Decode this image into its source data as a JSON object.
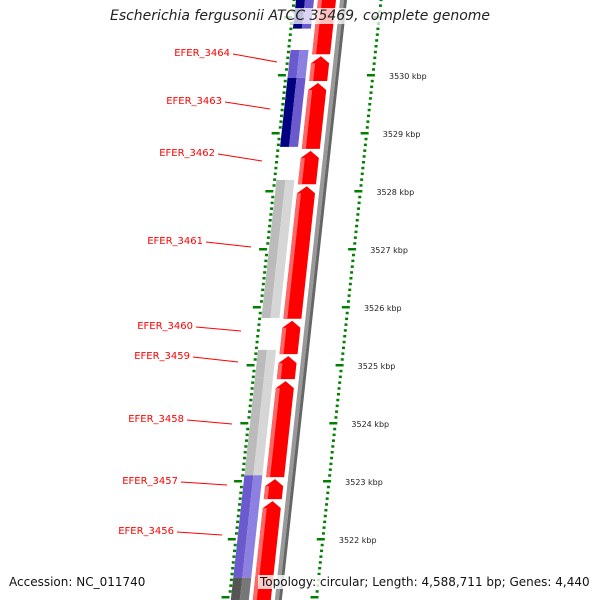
{
  "title": "Escherichia fergusonii ATCC 35469, complete genome",
  "accession": "Accession: NC_011740",
  "topology": "Topology: circular; Length: 4,588,711 bp; Genes: 4,440",
  "colors": {
    "forward": "#ff0000",
    "reverse_dark": "#000080",
    "reverse_light": "#6a5acd",
    "other": "#bbbbbb",
    "backbone": "#888888",
    "ticks": "#008000",
    "label": "#ff0000"
  },
  "ruler": {
    "unit": "kbp",
    "labels": [
      "3530 kbp",
      "3529 kbp",
      "3528 kbp",
      "3527 kbp",
      "3526 kbp",
      "3525 kbp",
      "3524 kbp",
      "3523 kbp",
      "3522 kbp"
    ],
    "values": [
      3530,
      3529,
      3528,
      3527,
      3526,
      3525,
      3524,
      3523,
      3522
    ]
  },
  "gene_labels": [
    "EFER_3464",
    "EFER_3463",
    "EFER_3462",
    "EFER_3461",
    "EFER_3460",
    "EFER_3459",
    "EFER_3458",
    "EFER_3457",
    "EFER_3456"
  ],
  "outer_genes": [
    {
      "start_kbp": 3530.8,
      "end_kbp": 3531.5,
      "type": "reverse_dark"
    },
    {
      "start_kbp": 3529.95,
      "end_kbp": 3530.43,
      "type": "reverse_light"
    },
    {
      "start_kbp": 3528.76,
      "end_kbp": 3529.95,
      "type": "reverse_dark"
    },
    {
      "start_kbp": 3525.81,
      "end_kbp": 3528.19,
      "type": "other"
    },
    {
      "start_kbp": 3524.78,
      "end_kbp": 3525.26,
      "type": "other"
    },
    {
      "start_kbp": 3523.1,
      "end_kbp": 3524.78,
      "type": "other"
    },
    {
      "start_kbp": 3521.33,
      "end_kbp": 3523.1,
      "type": "reverse_light"
    },
    {
      "start_kbp": 3520.9,
      "end_kbp": 3521.33,
      "type": "dark_other"
    }
  ],
  "forward_genes": [
    {
      "start_kbp": 3530.34,
      "end_kbp": 3531.5
    },
    {
      "start_kbp": 3529.88,
      "end_kbp": 3530.34
    },
    {
      "start_kbp": 3528.71,
      "end_kbp": 3529.88
    },
    {
      "start_kbp": 3528.1,
      "end_kbp": 3528.71
    },
    {
      "start_kbp": 3525.78,
      "end_kbp": 3528.1
    },
    {
      "start_kbp": 3525.17,
      "end_kbp": 3525.78
    },
    {
      "start_kbp": 3524.74,
      "end_kbp": 3525.17
    },
    {
      "start_kbp": 3523.05,
      "end_kbp": 3524.74
    },
    {
      "start_kbp": 3522.67,
      "end_kbp": 3523.05
    },
    {
      "start_kbp": 3520.9,
      "end_kbp": 3522.67
    }
  ]
}
